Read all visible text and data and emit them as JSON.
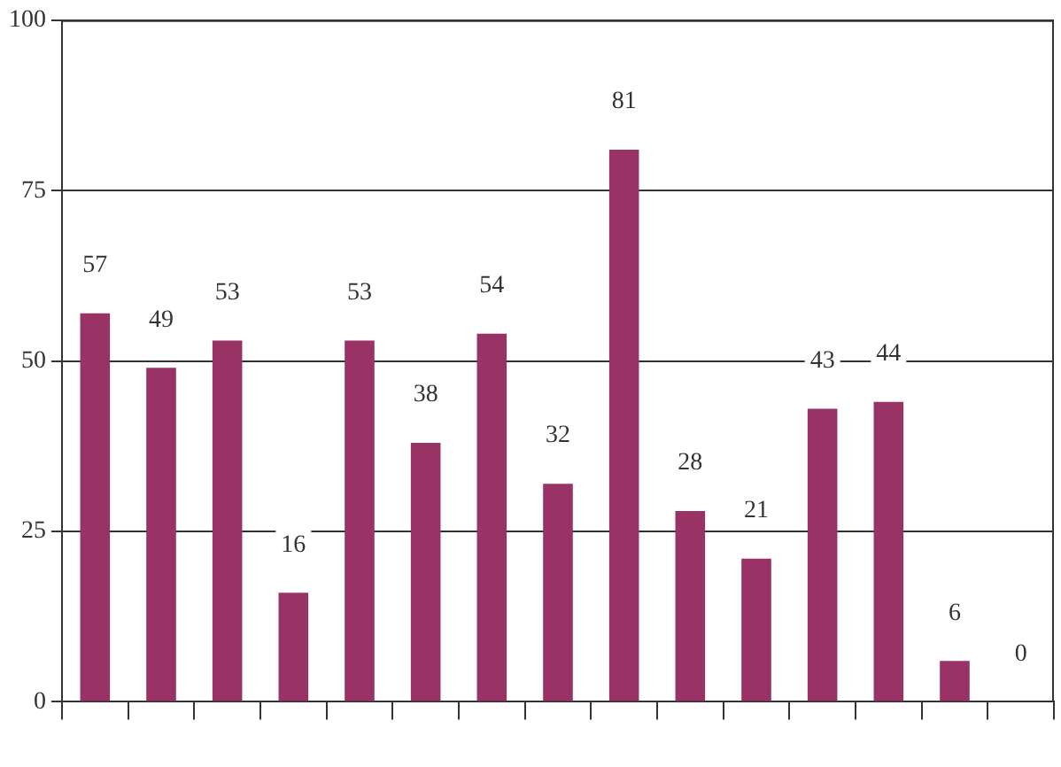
{
  "chart_data": {
    "type": "bar",
    "categories": [
      null,
      null,
      null,
      null,
      null,
      null,
      null,
      null,
      null,
      null,
      null,
      null,
      null,
      null,
      null
    ],
    "values": [
      57,
      49,
      53,
      16,
      53,
      38,
      54,
      32,
      81,
      28,
      21,
      43,
      44,
      6,
      0
    ],
    "color": "#993366",
    "ylim": [
      0,
      100
    ],
    "yticks": [
      0,
      25,
      50,
      75,
      100
    ],
    "grid": "y",
    "data_labels": true
  }
}
